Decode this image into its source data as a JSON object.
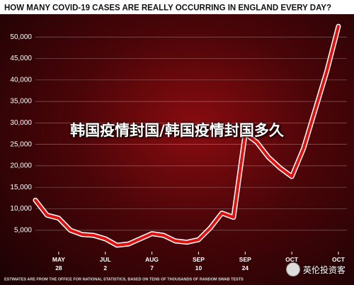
{
  "chart_data": {
    "type": "line",
    "title": "HOW MANY COVID-19 CASES ARE REALLY OCCURRING IN ENGLAND EVERY DAY?",
    "note": "ESTIMATES ARE FROM THE OFFICE FOR NATIONAL STATISTICS, BASED ON TENS OF THOUSANDS OF RANDOM SWAB TESTS",
    "categories": [
      null,
      null,
      "MAY 28",
      null,
      null,
      null,
      "JUL 2",
      null,
      null,
      null,
      "AUG 7",
      null,
      null,
      null,
      "SEP 10",
      null,
      null,
      null,
      "SEP 24",
      null,
      null,
      null,
      "OCT",
      null,
      null,
      null,
      "OCT"
    ],
    "values": [
      12000,
      8500,
      7800,
      5000,
      4000,
      3800,
      3000,
      1500,
      1800,
      3000,
      4200,
      3800,
      2500,
      2200,
      2800,
      5500,
      9000,
      8000,
      27500,
      25500,
      22000,
      19500,
      17500,
      24000,
      33000,
      42000,
      52500
    ],
    "color": "#e0100f",
    "ylim": [
      0,
      55000
    ],
    "yticks": [
      {
        "value": 5000,
        "label": "5,000"
      },
      {
        "value": 10000,
        "label": "10,000"
      },
      {
        "value": 15000,
        "label": "15,000"
      },
      {
        "value": 20000,
        "label": "20,000"
      },
      {
        "value": 25000,
        "label": "25,000"
      },
      {
        "value": 30000,
        "label": "30,000"
      },
      {
        "value": 35000,
        "label": "35,000"
      },
      {
        "value": 40000,
        "label": "40,000"
      },
      {
        "value": 45000,
        "label": "45,000"
      },
      {
        "value": 50000,
        "label": "50,000"
      }
    ],
    "grid": true
  },
  "overlay_text": "韩国疫情封国/韩国疫情封国多久",
  "watermark": "英伦投资客"
}
